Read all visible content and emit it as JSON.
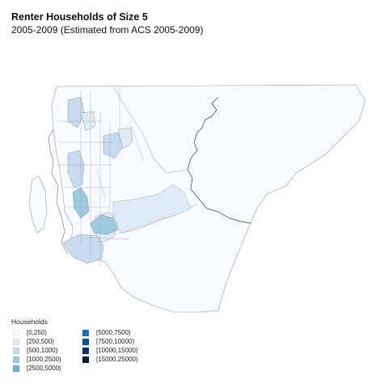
{
  "title": "Renter Households of Size 5",
  "subtitle": "2005-2009 (Estimated from ACS 2005-2009)",
  "legend": {
    "title": "Households",
    "items": [
      {
        "label": "[0,250)",
        "color": "#f7fbff"
      },
      {
        "label": "[250,500)",
        "color": "#deebf7"
      },
      {
        "label": "[500,1000)",
        "color": "#c6dbef"
      },
      {
        "label": "[1000,2500)",
        "color": "#9ecae1"
      },
      {
        "label": "[2500,5000)",
        "color": "#6baed6"
      },
      {
        "label": "[5000,7500)",
        "color": "#2171b5"
      },
      {
        "label": "[7500,10000)",
        "color": "#08519c"
      },
      {
        "label": "[10000,15000)",
        "color": "#08306b"
      },
      {
        "label": "[15000,25000)",
        "color": "#061b3d"
      }
    ]
  },
  "map": {
    "region_classes": {
      "county_body": "[0,250)",
      "southern_lowlands": "[250,500)",
      "central_valley_tract": "[250,500)",
      "eastside_tracts": "[250,500)",
      "kent_valley_tract": "[500,1000)",
      "renton_tract": "[1000,2500)",
      "southwest_tract": "[500,1000)",
      "vashon_island": "[0,250)"
    }
  }
}
